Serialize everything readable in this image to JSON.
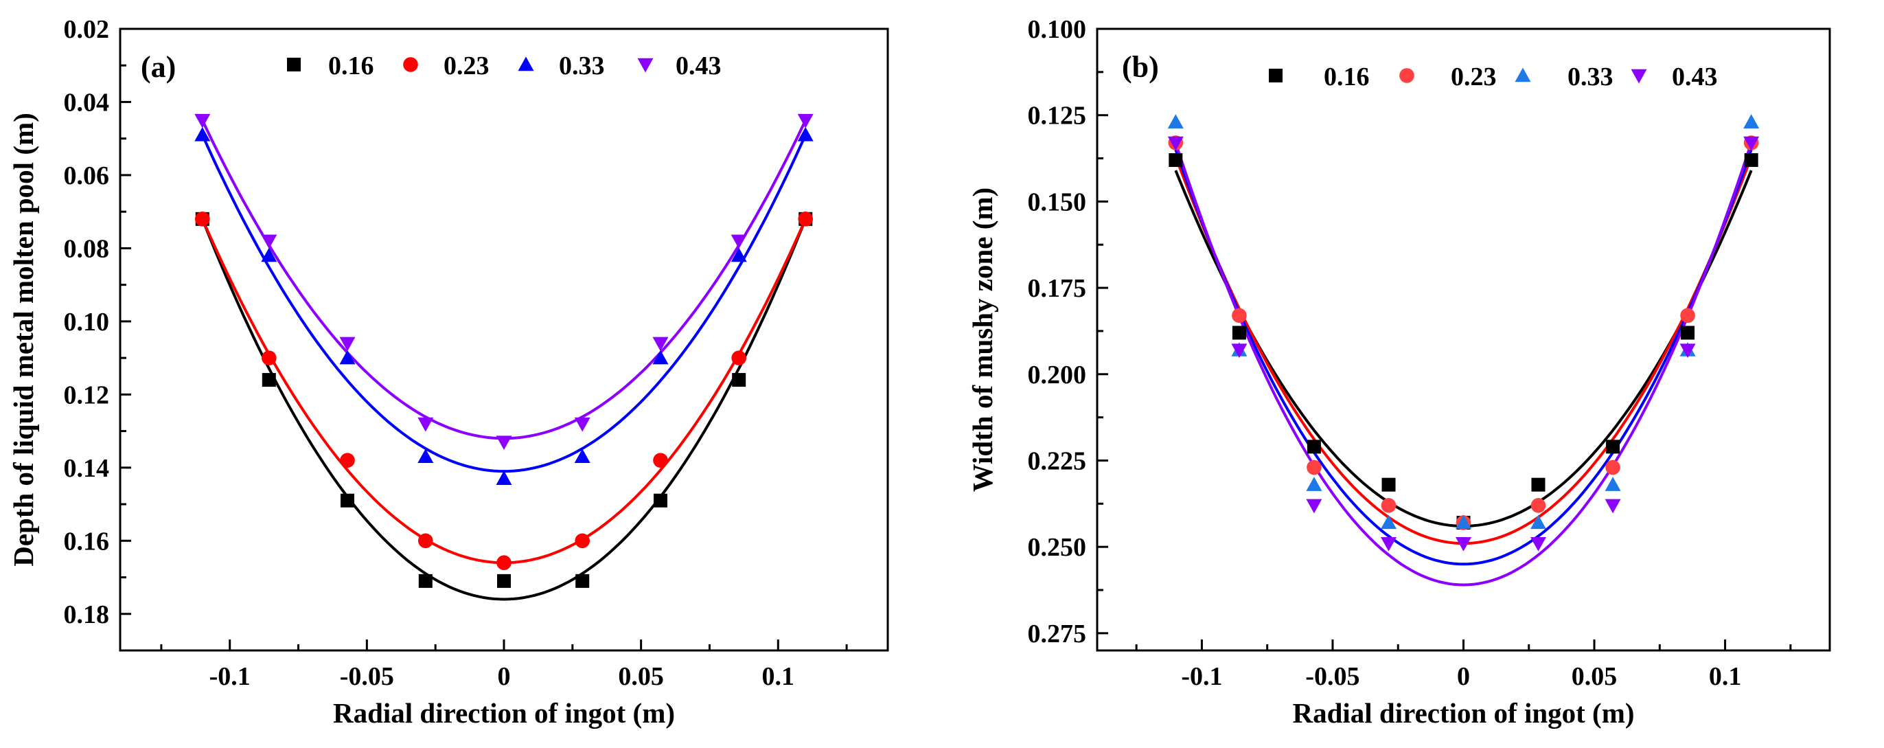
{
  "chart_data": [
    {
      "panel": "(a)",
      "type": "scatter",
      "xlabel": "Radial direction of ingot (m)",
      "ylabel": "Depth of liquid metal molten pool (m)",
      "xlim": [
        -0.14,
        0.14
      ],
      "ylim": [
        0.02,
        0.19
      ],
      "y_inverted": true,
      "xticks": [
        -0.1,
        -0.05,
        0,
        0.05,
        0.1
      ],
      "xtick_labels": [
        "-0.1",
        "-0.05",
        "0",
        "0.05",
        "0.1"
      ],
      "yticks": [
        0.02,
        0.04,
        0.06,
        0.08,
        0.1,
        0.12,
        0.14,
        0.16,
        0.18
      ],
      "ytick_labels": [
        "0.02",
        "0.04",
        "0.06",
        "0.08",
        "0.10",
        "0.12",
        "0.14",
        "0.16",
        "0.18"
      ],
      "legend_position": "top",
      "x": [
        -0.11,
        -0.0857,
        -0.0571,
        -0.0286,
        0,
        0.0286,
        0.0571,
        0.0857,
        0.11
      ],
      "series": [
        {
          "name": "0.16",
          "color": "#000000",
          "marker": "square",
          "values": [
            0.072,
            0.116,
            0.149,
            0.171,
            0.171,
            0.171,
            0.149,
            0.116,
            0.072
          ]
        },
        {
          "name": "0.23",
          "color": "#ff0000",
          "marker": "circle",
          "values": [
            0.072,
            0.11,
            0.138,
            0.16,
            0.166,
            0.16,
            0.138,
            0.11,
            0.072
          ]
        },
        {
          "name": "0.33",
          "color": "#0000ff",
          "marker": "triangle-up",
          "values": [
            0.049,
            0.082,
            0.11,
            0.137,
            0.143,
            0.137,
            0.11,
            0.082,
            0.049
          ]
        },
        {
          "name": "0.43",
          "color": "#8b00ff",
          "marker": "triangle-down",
          "values": [
            0.045,
            0.078,
            0.106,
            0.128,
            0.133,
            0.128,
            0.106,
            0.078,
            0.045
          ]
        }
      ],
      "fits": [
        {
          "name": "0.16",
          "color": "#000000",
          "vertex": 0.176,
          "edge": 0.072
        },
        {
          "name": "0.23",
          "color": "#ff0000",
          "vertex": 0.166,
          "edge": 0.072
        },
        {
          "name": "0.33",
          "color": "#0000ff",
          "vertex": 0.141,
          "edge": 0.049
        },
        {
          "name": "0.43",
          "color": "#8b00ff",
          "vertex": 0.132,
          "edge": 0.045
        }
      ]
    },
    {
      "panel": "(b)",
      "type": "scatter",
      "xlabel": "Radial direction of ingot (m)",
      "ylabel": "Width of mushy zone (m)",
      "xlim": [
        -0.14,
        0.14
      ],
      "ylim": [
        0.1,
        0.28
      ],
      "y_inverted": true,
      "xticks": [
        -0.1,
        -0.05,
        0,
        0.05,
        0.1
      ],
      "xtick_labels": [
        "-0.1",
        "-0.05",
        "0",
        "0.05",
        "0.1"
      ],
      "yticks": [
        0.1,
        0.125,
        0.15,
        0.175,
        0.2,
        0.225,
        0.25,
        0.275
      ],
      "ytick_labels": [
        "0.100",
        "0.125",
        "0.150",
        "0.175",
        "0.200",
        "0.225",
        "0.250",
        "0.275"
      ],
      "legend_position": "top",
      "x": [
        -0.11,
        -0.0857,
        -0.0571,
        -0.0286,
        0,
        0.0286,
        0.0571,
        0.0857,
        0.11
      ],
      "series": [
        {
          "name": "0.16",
          "color": "#000000",
          "marker": "square",
          "values": [
            0.138,
            0.188,
            0.221,
            0.232,
            0.243,
            0.232,
            0.221,
            0.188,
            0.138
          ]
        },
        {
          "name": "0.23",
          "color": "#ff4040",
          "marker": "circle",
          "values": [
            0.133,
            0.183,
            0.227,
            0.238,
            0.243,
            0.238,
            0.227,
            0.183,
            0.133
          ]
        },
        {
          "name": "0.33",
          "color": "#1e78e6",
          "marker": "triangle-up",
          "values": [
            0.127,
            0.193,
            0.232,
            0.243,
            0.243,
            0.243,
            0.232,
            0.193,
            0.127
          ]
        },
        {
          "name": "0.43",
          "color": "#8b00ff",
          "marker": "triangle-down",
          "values": [
            0.133,
            0.193,
            0.238,
            0.249,
            0.249,
            0.249,
            0.238,
            0.193,
            0.133
          ]
        }
      ],
      "fits": [
        {
          "name": "0.16",
          "color": "#000000",
          "vertex": 0.244,
          "edge": 0.141
        },
        {
          "name": "0.23",
          "color": "#ff0000",
          "vertex": 0.249,
          "edge": 0.137
        },
        {
          "name": "0.33",
          "color": "#0000ff",
          "vertex": 0.255,
          "edge": 0.135
        },
        {
          "name": "0.43",
          "color": "#8b00ff",
          "vertex": 0.261,
          "edge": 0.133
        }
      ]
    }
  ]
}
